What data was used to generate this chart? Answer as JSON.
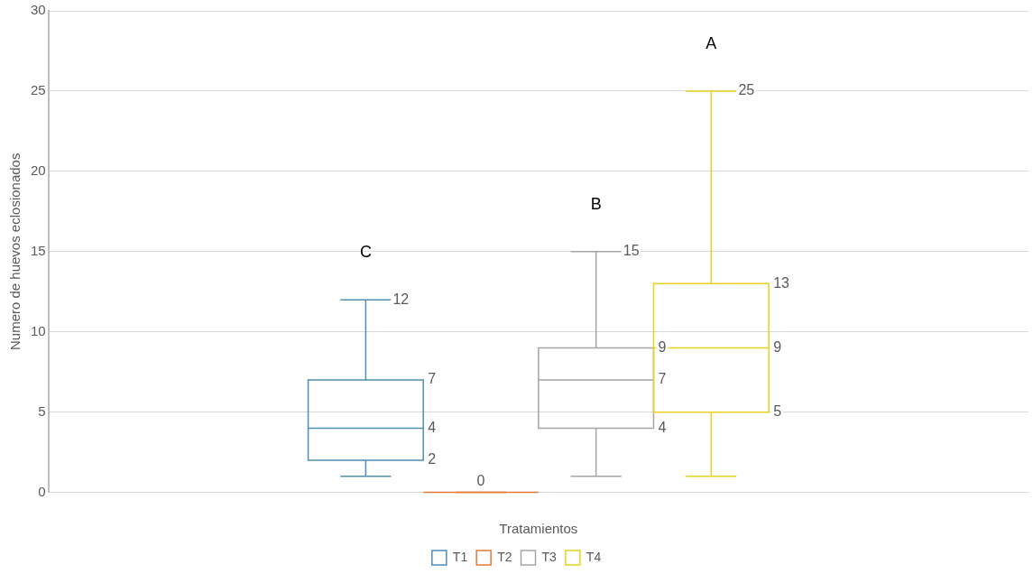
{
  "chart_data": {
    "type": "box",
    "xlabel": "Tratamientos",
    "ylabel": "Numero de huevos eclosionados",
    "categories": [
      null
    ],
    "series": [
      {
        "name": "T1",
        "color": "#4f8fb0",
        "boxes": [
          {
            "low": 1,
            "q1": 2,
            "median": 4,
            "q3": 7,
            "high": 12
          }
        ]
      },
      {
        "name": "T2",
        "color": "#e07b39",
        "boxes": [
          {
            "low": 0,
            "q1": 0,
            "median": 0,
            "q3": 0,
            "high": 0
          }
        ]
      },
      {
        "name": "T3",
        "color": "#a5a5a5",
        "boxes": [
          {
            "low": 1,
            "q1": 4,
            "median": 7,
            "q3": 9,
            "high": 15
          }
        ]
      },
      {
        "name": "T4",
        "color": "#e8d21d",
        "boxes": [
          {
            "low": 1,
            "q1": 5,
            "median": 9,
            "q3": 13,
            "high": 25
          }
        ]
      }
    ],
    "ylim": [
      0,
      30
    ],
    "yticks": [
      0,
      5,
      10,
      15,
      20,
      25,
      30
    ],
    "grid": "y",
    "legend": "bottom",
    "annotations": [
      "C",
      "B",
      "A",
      {
        "text": "12",
        "y": 12
      },
      {
        "text": "7",
        "y": 7
      },
      {
        "text": "4",
        "y": 4
      },
      {
        "text": "2",
        "y": 2
      },
      {
        "text": "0",
        "y": 0
      },
      {
        "text": "15",
        "y": 15
      },
      {
        "text": "9",
        "y": 9
      },
      {
        "text": "7",
        "y": 7
      },
      {
        "text": "4",
        "y": 4
      },
      {
        "text": "25",
        "y": 25
      },
      {
        "text": "13",
        "y": 13
      },
      {
        "text": "9",
        "y": 9
      },
      {
        "text": "5",
        "y": 5
      }
    ]
  }
}
